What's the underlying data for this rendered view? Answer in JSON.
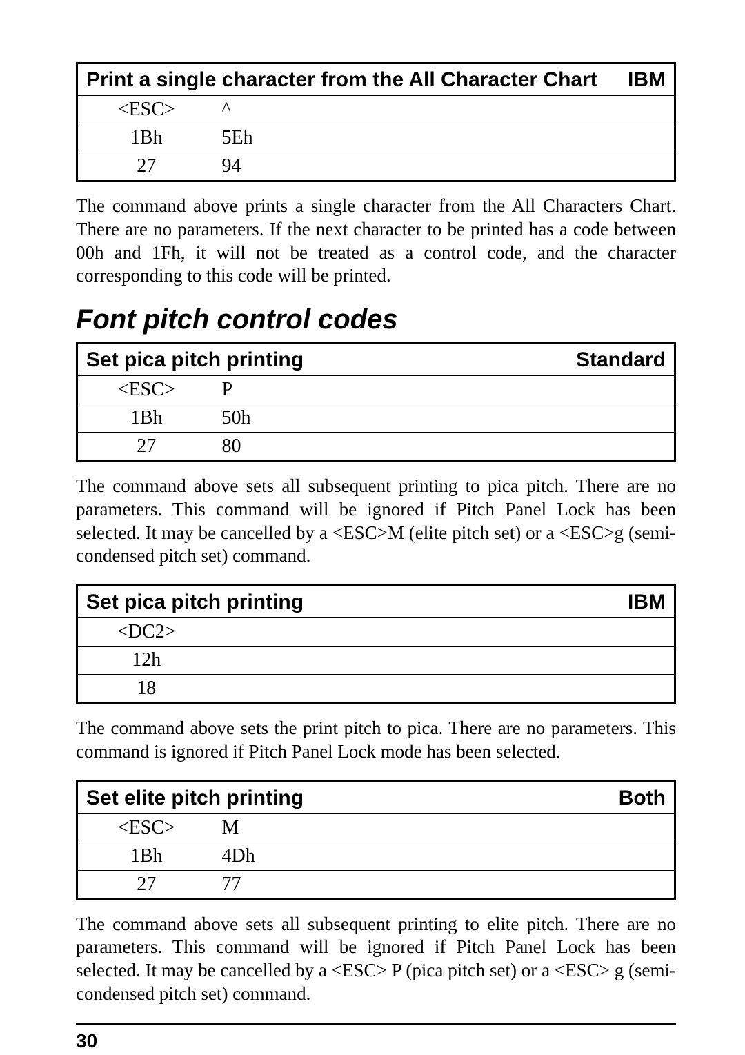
{
  "table1": {
    "title": "Print a single character from the All Character Chart",
    "mode": "IBM",
    "rows": [
      {
        "c1": "<ESC>",
        "c2": "^"
      },
      {
        "c1": "1Bh",
        "c2": "5Eh"
      },
      {
        "c1": "27",
        "c2": "94"
      }
    ]
  },
  "para1": "The command above prints a single character from the All Characters Chart. There are no parameters. If the next character to be printed has a code between 00h and 1Fh, it will not be treated as a control code, and the character corresponding to this code will be printed.",
  "section_heading": "Font pitch control codes",
  "table2": {
    "title": "Set pica pitch printing",
    "mode": "Standard",
    "rows": [
      {
        "c1": "<ESC>",
        "c2": "P"
      },
      {
        "c1": "1Bh",
        "c2": "50h"
      },
      {
        "c1": "27",
        "c2": "80"
      }
    ]
  },
  "para2": "The command above sets all subsequent printing to pica pitch. There are no parameters. This command will be ignored if Pitch Panel Lock has been selected. It may be cancelled by a <ESC>M (elite pitch set) or a <ESC>g (semi-condensed pitch set) command.",
  "table3": {
    "title": "Set pica pitch printing",
    "mode": "IBM",
    "rows": [
      {
        "c1": "<DC2>",
        "c2": ""
      },
      {
        "c1": "12h",
        "c2": ""
      },
      {
        "c1": "18",
        "c2": ""
      }
    ]
  },
  "para3": "The command above sets the print pitch to pica. There are no parameters. This command is ignored if Pitch Panel Lock mode has been selected.",
  "table4": {
    "title": "Set elite pitch printing",
    "mode": "Both",
    "rows": [
      {
        "c1": "<ESC>",
        "c2": "M"
      },
      {
        "c1": "1Bh",
        "c2": "4Dh"
      },
      {
        "c1": "27",
        "c2": "77"
      }
    ]
  },
  "para4": "The command above sets all subsequent printing to elite pitch. There are no parameters. This command will be ignored if Pitch Panel Lock has been selected. It may be cancelled by a <ESC> P (pica pitch set) or a <ESC> g (semi-condensed pitch set) command.",
  "page_number": "30"
}
